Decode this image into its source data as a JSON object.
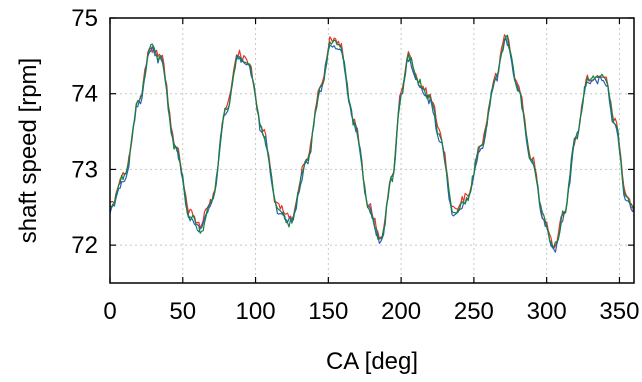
{
  "chart_data": {
    "type": "line",
    "title": "",
    "xlabel": "CA [deg]",
    "ylabel": "shaft speed [rpm]",
    "xlim": [
      0,
      360
    ],
    "ylim": [
      71.5,
      75
    ],
    "xticks": [
      0,
      50,
      100,
      150,
      200,
      250,
      300,
      350
    ],
    "yticks": [
      72,
      73,
      74,
      75
    ],
    "grid": true,
    "legend": "none",
    "keypoints": [
      [
        0,
        72.5
      ],
      [
        10,
        72.9
      ],
      [
        20,
        73.9
      ],
      [
        28,
        74.6
      ],
      [
        35,
        74.45
      ],
      [
        45,
        73.3
      ],
      [
        55,
        72.4
      ],
      [
        62,
        72.2
      ],
      [
        70,
        72.6
      ],
      [
        80,
        73.8
      ],
      [
        88,
        74.5
      ],
      [
        95,
        74.4
      ],
      [
        105,
        73.5
      ],
      [
        115,
        72.5
      ],
      [
        124,
        72.3
      ],
      [
        135,
        73.1
      ],
      [
        145,
        74.1
      ],
      [
        152,
        74.7
      ],
      [
        158,
        74.6
      ],
      [
        168,
        73.6
      ],
      [
        178,
        72.5
      ],
      [
        186,
        72.05
      ],
      [
        194,
        72.9
      ],
      [
        200,
        74.0
      ],
      [
        205,
        74.5
      ],
      [
        212,
        74.15
      ],
      [
        220,
        73.95
      ],
      [
        227,
        73.4
      ],
      [
        236,
        72.4
      ],
      [
        245,
        72.6
      ],
      [
        255,
        73.3
      ],
      [
        265,
        74.2
      ],
      [
        272,
        74.75
      ],
      [
        280,
        74.1
      ],
      [
        290,
        73.1
      ],
      [
        298,
        72.35
      ],
      [
        305,
        71.95
      ],
      [
        312,
        72.4
      ],
      [
        320,
        73.4
      ],
      [
        328,
        74.2
      ],
      [
        335,
        74.2
      ],
      [
        340,
        74.2
      ],
      [
        347,
        73.6
      ],
      [
        355,
        72.6
      ],
      [
        360,
        72.45
      ]
    ],
    "series": [
      {
        "name": "",
        "color": "#e8322c",
        "offset": 0.03,
        "seed": 7
      },
      {
        "name": "",
        "color": "#2a5fb8",
        "offset": -0.02,
        "seed": 19
      },
      {
        "name": "",
        "color": "#12833a",
        "offset": 0.0,
        "seed": 41
      }
    ]
  }
}
